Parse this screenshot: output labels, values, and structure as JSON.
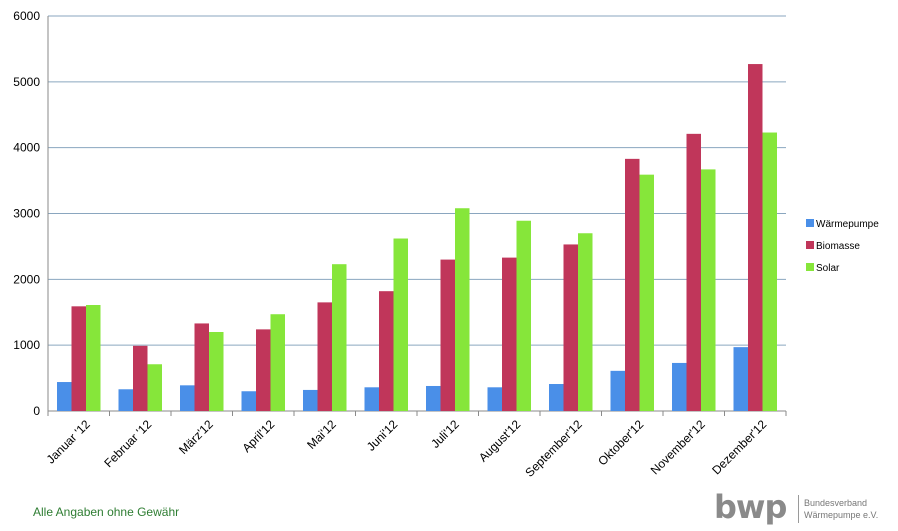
{
  "chart_data": {
    "type": "bar",
    "categories": [
      "Januar '12",
      "Februar '12",
      "März'12",
      "April'12",
      "Mai'12",
      "Juni'12",
      "Juli'12",
      "August'12",
      "September'12",
      "Oktober'12",
      "November'12",
      "Dezember'12"
    ],
    "series": [
      {
        "name": "Wärmepumpe",
        "color": "#4a8fe8",
        "values": [
          440,
          330,
          390,
          300,
          320,
          360,
          380,
          360,
          410,
          610,
          730,
          970
        ]
      },
      {
        "name": "Biomasse",
        "color": "#c0365a",
        "values": [
          1590,
          990,
          1330,
          1240,
          1650,
          1820,
          2300,
          2330,
          2530,
          3830,
          4210,
          5270
        ]
      },
      {
        "name": "Solar",
        "color": "#86e63a",
        "values": [
          1610,
          710,
          1200,
          1470,
          2230,
          2620,
          3080,
          2890,
          2700,
          3590,
          3670,
          4230
        ]
      }
    ],
    "ylim": [
      0,
      6000
    ],
    "yticks": [
      "0",
      "1000",
      "2000",
      "3000",
      "4000",
      "5000",
      "6000"
    ],
    "grid": true,
    "legend_position": "right"
  },
  "footnote": "Alle Angaben ohne Gewähr",
  "logo": {
    "mark": "bwp",
    "line1": "Bundesverband",
    "line2": "Wärmepumpe e.V."
  }
}
